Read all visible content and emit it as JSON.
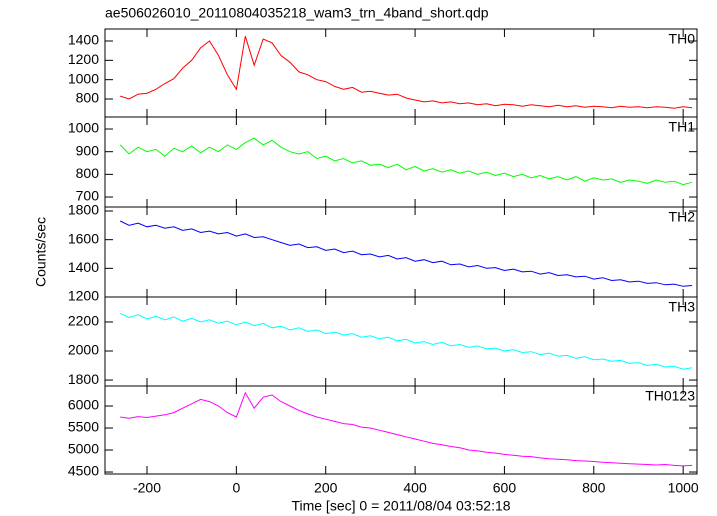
{
  "title": "ae506026010_20110804035218_wam3_trn_4band_short.qdp",
  "xlabel": "Time [sec] 0 = 2011/08/04 03:52:18",
  "ylabel": "Counts/sec",
  "xlim": [
    -294,
    1031
  ],
  "xticks": [
    -200,
    0,
    200,
    400,
    600,
    800,
    1000
  ],
  "x": [
    -260,
    -240,
    -220,
    -200,
    -180,
    -160,
    -140,
    -120,
    -100,
    -80,
    -60,
    -40,
    -20,
    0,
    20,
    40,
    60,
    80,
    100,
    120,
    140,
    160,
    180,
    200,
    220,
    240,
    260,
    280,
    300,
    320,
    340,
    360,
    380,
    400,
    420,
    440,
    460,
    480,
    500,
    520,
    540,
    560,
    580,
    600,
    620,
    640,
    660,
    680,
    700,
    720,
    740,
    760,
    780,
    800,
    820,
    840,
    860,
    880,
    900,
    920,
    940,
    960,
    980,
    1000,
    1020
  ],
  "chart_data": [
    {
      "type": "line",
      "ylim": [
        614,
        1524
      ],
      "yticks": [
        800,
        1000,
        1200,
        1400
      ],
      "series": [
        {
          "name": "TH0",
          "color": "#ff0000",
          "values": [
            830,
            800,
            850,
            860,
            900,
            960,
            1010,
            1120,
            1200,
            1330,
            1400,
            1250,
            1050,
            900,
            1450,
            1150,
            1420,
            1380,
            1250,
            1180,
            1080,
            1050,
            1000,
            980,
            930,
            900,
            920,
            870,
            880,
            860,
            840,
            850,
            810,
            790,
            770,
            780,
            760,
            770,
            750,
            760,
            740,
            750,
            730,
            745,
            740,
            725,
            740,
            730,
            720,
            735,
            720,
            730,
            715,
            725,
            720,
            710,
            725,
            715,
            720,
            710,
            720,
            715,
            705,
            720,
            710
          ]
        }
      ]
    },
    {
      "type": "line",
      "ylim": [
        656,
        1053
      ],
      "yticks": [
        700,
        800,
        900,
        1000
      ],
      "series": [
        {
          "name": "TH1",
          "color": "#00ff00",
          "values": [
            930,
            890,
            920,
            900,
            910,
            880,
            915,
            900,
            925,
            895,
            920,
            900,
            930,
            910,
            940,
            960,
            930,
            950,
            920,
            900,
            890,
            900,
            870,
            880,
            860,
            870,
            850,
            860,
            840,
            845,
            830,
            845,
            820,
            835,
            815,
            825,
            810,
            820,
            805,
            815,
            800,
            810,
            795,
            805,
            790,
            800,
            785,
            795,
            780,
            790,
            775,
            790,
            770,
            785,
            775,
            780,
            765,
            775,
            770,
            760,
            775,
            765,
            770,
            755,
            765
          ]
        }
      ]
    },
    {
      "type": "line",
      "ylim": [
        1200,
        1828
      ],
      "yticks": [
        1200,
        1400,
        1600,
        1800
      ],
      "series": [
        {
          "name": "TH2",
          "color": "#0000ff",
          "values": [
            1730,
            1700,
            1715,
            1690,
            1700,
            1680,
            1690,
            1665,
            1675,
            1650,
            1660,
            1640,
            1650,
            1625,
            1640,
            1615,
            1620,
            1600,
            1580,
            1560,
            1570,
            1545,
            1550,
            1525,
            1535,
            1510,
            1520,
            1495,
            1500,
            1480,
            1490,
            1465,
            1475,
            1450,
            1460,
            1440,
            1450,
            1425,
            1430,
            1410,
            1420,
            1400,
            1405,
            1385,
            1395,
            1375,
            1380,
            1360,
            1370,
            1350,
            1355,
            1340,
            1345,
            1325,
            1335,
            1315,
            1320,
            1305,
            1310,
            1295,
            1300,
            1285,
            1290,
            1275,
            1280
          ]
        }
      ]
    },
    {
      "type": "line",
      "ylim": [
        1759,
        2372
      ],
      "yticks": [
        1800,
        2000,
        2200
      ],
      "series": [
        {
          "name": "TH3",
          "color": "#00ffff",
          "values": [
            2260,
            2230,
            2250,
            2220,
            2240,
            2215,
            2235,
            2205,
            2225,
            2200,
            2215,
            2190,
            2205,
            2180,
            2200,
            2175,
            2190,
            2160,
            2170,
            2145,
            2160,
            2135,
            2145,
            2120,
            2130,
            2110,
            2120,
            2095,
            2105,
            2085,
            2095,
            2070,
            2080,
            2055,
            2065,
            2045,
            2060,
            2035,
            2045,
            2025,
            2035,
            2015,
            2020,
            2000,
            2010,
            1990,
            1995,
            1975,
            1985,
            1965,
            1970,
            1950,
            1960,
            1940,
            1945,
            1930,
            1935,
            1915,
            1920,
            1900,
            1910,
            1890,
            1895,
            1875,
            1885
          ]
        }
      ]
    },
    {
      "type": "line",
      "ylim": [
        4455,
        6455
      ],
      "yticks": [
        4500,
        5000,
        5500,
        6000
      ],
      "series": [
        {
          "name": "TH0123",
          "color": "#ff00ff",
          "values": [
            5750,
            5720,
            5760,
            5740,
            5770,
            5800,
            5850,
            5950,
            6050,
            6150,
            6100,
            6000,
            5850,
            5750,
            6300,
            5950,
            6200,
            6250,
            6100,
            6000,
            5900,
            5820,
            5750,
            5700,
            5650,
            5600,
            5580,
            5520,
            5500,
            5450,
            5400,
            5350,
            5300,
            5250,
            5200,
            5150,
            5120,
            5080,
            5050,
            5000,
            4980,
            4950,
            4930,
            4900,
            4880,
            4860,
            4850,
            4820,
            4800,
            4790,
            4780,
            4760,
            4750,
            4740,
            4720,
            4710,
            4700,
            4690,
            4680,
            4670,
            4660,
            4670,
            4650,
            4640,
            4650
          ]
        }
      ]
    }
  ]
}
